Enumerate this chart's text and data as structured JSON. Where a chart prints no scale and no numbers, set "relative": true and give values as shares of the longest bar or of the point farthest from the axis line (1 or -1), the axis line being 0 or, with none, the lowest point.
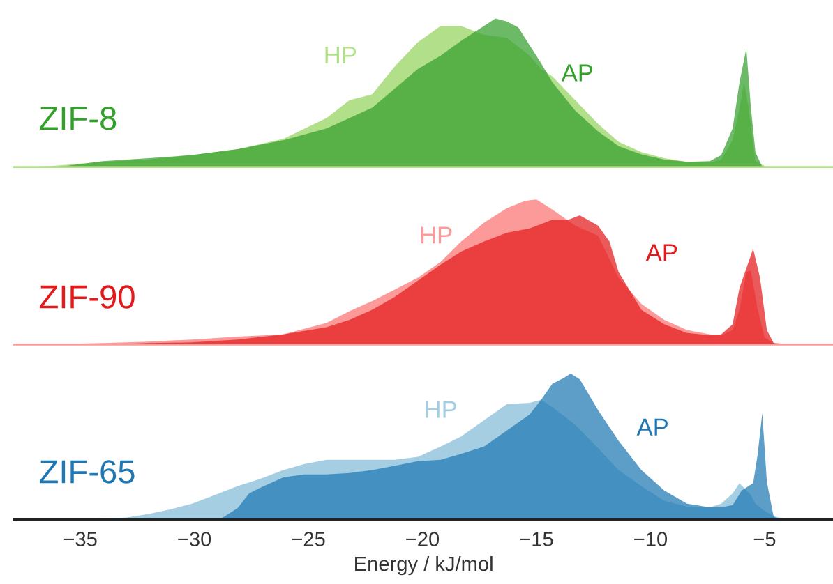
{
  "chart_data": [
    {
      "type": "area",
      "relative": true,
      "title": "ZIF-8",
      "xlim": [
        -37.9,
        -2.0
      ],
      "tick_labels": false,
      "series": [
        {
          "name": "HP",
          "color": "#b2df8a",
          "x": [
            -37.0,
            -36.0,
            -34.0,
            -32.0,
            -30.1,
            -28.1,
            -26.1,
            -24.2,
            -23.2,
            -22.2,
            -21.2,
            -20.2,
            -19.2,
            -18.3,
            -17.3,
            -16.3,
            -15.3,
            -14.8,
            -14.3,
            -13.3,
            -12.3,
            -11.4,
            -10.4,
            -9.4,
            -8.4,
            -7.4,
            -6.9,
            -6.4,
            -6.1,
            -5.9,
            -5.7,
            -5.4,
            -4.9,
            -3.5
          ],
          "values": [
            0,
            0.01,
            0.035,
            0.05,
            0.08,
            0.12,
            0.19,
            0.33,
            0.45,
            0.49,
            0.68,
            0.84,
            0.95,
            0.95,
            0.89,
            0.87,
            0.75,
            0.66,
            0.61,
            0.45,
            0.29,
            0.17,
            0.1,
            0.06,
            0.035,
            0.03,
            0.05,
            0.18,
            0.4,
            0.57,
            0.4,
            0.04,
            0,
            0
          ]
        },
        {
          "name": "AP",
          "color": "#33a02c",
          "x": [
            -36.0,
            -34.0,
            -32.0,
            -30.1,
            -28.1,
            -26.1,
            -24.2,
            -22.2,
            -20.2,
            -19.2,
            -18.3,
            -17.3,
            -16.8,
            -16.3,
            -15.8,
            -15.3,
            -14.8,
            -14.3,
            -13.3,
            -12.3,
            -11.4,
            -10.4,
            -9.4,
            -8.4,
            -7.4,
            -6.9,
            -6.4,
            -6.1,
            -5.8,
            -5.6,
            -5.4,
            -5.1,
            -3.5
          ],
          "values": [
            0,
            0.04,
            0.06,
            0.08,
            0.12,
            0.18,
            0.26,
            0.4,
            0.66,
            0.75,
            0.85,
            0.95,
            1.0,
            0.98,
            0.94,
            0.82,
            0.7,
            0.57,
            0.38,
            0.24,
            0.14,
            0.085,
            0.05,
            0.035,
            0.04,
            0.08,
            0.26,
            0.57,
            0.8,
            0.4,
            0.1,
            0,
            0
          ]
        }
      ]
    },
    {
      "type": "area",
      "relative": true,
      "title": "ZIF-90",
      "xlim": [
        -37.9,
        -2.0
      ],
      "tick_labels": false,
      "series": [
        {
          "name": "HP",
          "color": "#fb9a99",
          "x": [
            -37.0,
            -34.0,
            -32.0,
            -30.1,
            -28.1,
            -26.1,
            -24.2,
            -23.2,
            -22.2,
            -21.2,
            -20.2,
            -19.2,
            -18.3,
            -17.3,
            -16.3,
            -15.5,
            -15.0,
            -14.3,
            -13.3,
            -12.3,
            -11.4,
            -10.4,
            -9.4,
            -8.4,
            -7.4,
            -6.9,
            -6.4,
            -6.1,
            -5.8,
            -5.6,
            -5.3,
            -5.0,
            -4.5,
            -3.5
          ],
          "values": [
            0,
            0.01,
            0.02,
            0.035,
            0.055,
            0.07,
            0.15,
            0.23,
            0.3,
            0.38,
            0.46,
            0.57,
            0.71,
            0.84,
            0.94,
            0.99,
            1.0,
            0.93,
            0.82,
            0.75,
            0.46,
            0.28,
            0.17,
            0.1,
            0.07,
            0.065,
            0.1,
            0.24,
            0.5,
            0.51,
            0.24,
            0.05,
            0,
            0
          ]
        },
        {
          "name": "AP",
          "color": "#e31a1c",
          "x": [
            -34.0,
            -32.0,
            -30.1,
            -28.1,
            -26.1,
            -24.2,
            -23.2,
            -22.2,
            -21.2,
            -20.2,
            -19.2,
            -18.3,
            -17.3,
            -16.3,
            -15.3,
            -14.3,
            -13.6,
            -13.1,
            -12.3,
            -11.8,
            -11.4,
            -10.4,
            -9.4,
            -8.4,
            -7.4,
            -6.9,
            -6.4,
            -6.1,
            -5.5,
            -5.2,
            -4.9,
            -4.6,
            -3.5
          ],
          "values": [
            0,
            0.01,
            0.015,
            0.035,
            0.07,
            0.12,
            0.17,
            0.24,
            0.33,
            0.44,
            0.55,
            0.64,
            0.71,
            0.77,
            0.8,
            0.86,
            0.86,
            0.89,
            0.82,
            0.71,
            0.5,
            0.24,
            0.14,
            0.08,
            0.065,
            0.07,
            0.14,
            0.39,
            0.66,
            0.46,
            0.1,
            0.01,
            0
          ]
        }
      ]
    },
    {
      "type": "area",
      "relative": true,
      "title": "ZIF-65",
      "xlabel": "Energy / kJ/mol",
      "xlim": [
        -37.9,
        -2.0
      ],
      "xticks": [
        {
          "value": -35,
          "label": "−35"
        },
        {
          "value": -30,
          "label": "−30"
        },
        {
          "value": -25,
          "label": "−25"
        },
        {
          "value": -20,
          "label": "−20"
        },
        {
          "value": -15,
          "label": "−15"
        },
        {
          "value": -10,
          "label": "−10"
        },
        {
          "value": -5,
          "label": "−5"
        }
      ],
      "tick_labels": "x",
      "series": [
        {
          "name": "HP",
          "color": "#a6cee3",
          "x": [
            -37.0,
            -34.0,
            -33.0,
            -32.0,
            -31.1,
            -30.1,
            -29.1,
            -28.1,
            -27.1,
            -26.1,
            -25.2,
            -24.2,
            -23.2,
            -22.2,
            -21.2,
            -20.2,
            -19.2,
            -18.3,
            -17.3,
            -16.3,
            -15.3,
            -14.8,
            -14.3,
            -13.3,
            -12.3,
            -11.4,
            -10.4,
            -9.4,
            -8.4,
            -7.4,
            -6.9,
            -6.4,
            -6.1,
            -5.6,
            -5.4,
            -5.0,
            -4.5,
            -4.0
          ],
          "values": [
            0,
            0.01,
            0.015,
            0.04,
            0.07,
            0.11,
            0.17,
            0.23,
            0.28,
            0.34,
            0.38,
            0.41,
            0.41,
            0.41,
            0.41,
            0.43,
            0.5,
            0.57,
            0.68,
            0.79,
            0.8,
            0.82,
            0.77,
            0.65,
            0.49,
            0.34,
            0.23,
            0.13,
            0.09,
            0.085,
            0.11,
            0.18,
            0.25,
            0.17,
            0.11,
            0.06,
            0.02,
            0
          ]
        },
        {
          "name": "AP",
          "color": "#1f78b4",
          "x": [
            -37.0,
            -28.9,
            -28.1,
            -27.6,
            -27.1,
            -26.1,
            -25.2,
            -24.2,
            -23.2,
            -22.2,
            -21.2,
            -20.2,
            -19.2,
            -18.3,
            -17.3,
            -16.3,
            -15.3,
            -14.8,
            -14.3,
            -13.8,
            -13.5,
            -13.1,
            -12.3,
            -11.4,
            -10.4,
            -9.4,
            -8.4,
            -7.4,
            -6.9,
            -6.4,
            -6.0,
            -5.5,
            -5.3,
            -5.1,
            -4.9,
            -4.6,
            -4.3,
            -3.5
          ],
          "values": [
            0,
            0,
            0.08,
            0.18,
            0.22,
            0.29,
            0.31,
            0.31,
            0.32,
            0.34,
            0.37,
            0.4,
            0.41,
            0.45,
            0.5,
            0.61,
            0.72,
            0.82,
            0.93,
            0.97,
            1.0,
            0.96,
            0.75,
            0.54,
            0.34,
            0.2,
            0.11,
            0.085,
            0.085,
            0.1,
            0.2,
            0.25,
            0.45,
            0.73,
            0.26,
            0.02,
            0,
            0
          ]
        }
      ]
    }
  ]
}
